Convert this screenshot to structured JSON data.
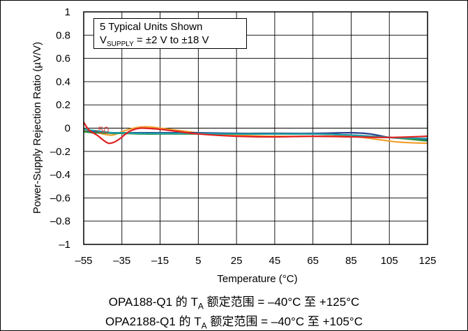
{
  "chart_data": {
    "type": "line",
    "xlabel": "Temperature (°C)",
    "ylabel": "Power-Supply Rejection Ratio (µV/V)",
    "xlim": [
      -55,
      125
    ],
    "ylim": [
      -1,
      1
    ],
    "x_ticks": [
      -55,
      -35,
      -15,
      5,
      25,
      45,
      65,
      85,
      105,
      125
    ],
    "y_ticks": [
      1,
      0.8,
      0.6,
      0.4,
      0.2,
      0,
      -0.2,
      -0.4,
      -0.6,
      -0.8,
      -1
    ],
    "x_tick_labels": [
      "–55",
      "–35",
      "–15",
      "5",
      "25",
      "45",
      "65",
      "85",
      "105",
      "125"
    ],
    "y_tick_labels": [
      "1",
      "0.8",
      "0.6",
      "0.4",
      "0.2",
      "0",
      "–0.2",
      "–0.4",
      "–0.6",
      "–0.8",
      "–1"
    ],
    "grid": true,
    "annotation": {
      "line1": "5 Typical Units Shown",
      "line2_main": "V",
      "line2_sub": "SUPPLY",
      "line2_rest": " = ±2 V to ±18 V"
    },
    "extra_text": "-50",
    "series": [
      {
        "color": "#f0a030",
        "x": [
          -55,
          -50,
          -45,
          -40,
          -35,
          -30,
          -25,
          -20,
          -15,
          -5,
          5,
          25,
          45,
          65,
          85,
          100,
          110,
          125
        ],
        "y": [
          -0.02,
          -0.03,
          -0.05,
          -0.06,
          -0.03,
          -0.005,
          0.01,
          0.01,
          0.0,
          -0.02,
          -0.04,
          -0.06,
          -0.07,
          -0.07,
          -0.07,
          -0.1,
          -0.12,
          -0.13
        ]
      },
      {
        "color": "#2a3d8f",
        "x": [
          -55,
          -50,
          -45,
          -40,
          -35,
          -25,
          -15,
          -5,
          5,
          25,
          45,
          65,
          85,
          95,
          105,
          115,
          125
        ],
        "y": [
          -0.03,
          -0.03,
          -0.04,
          -0.04,
          -0.04,
          -0.04,
          -0.04,
          -0.04,
          -0.04,
          -0.045,
          -0.045,
          -0.045,
          -0.04,
          -0.05,
          -0.08,
          -0.09,
          -0.1
        ]
      },
      {
        "color": "#2f8f3f",
        "x": [
          -55,
          -50,
          -45,
          -40,
          -35,
          -25,
          -15,
          -5,
          5,
          25,
          45,
          65,
          85,
          105,
          125
        ],
        "y": [
          -0.03,
          -0.04,
          -0.04,
          -0.045,
          -0.045,
          -0.05,
          -0.05,
          -0.05,
          -0.05,
          -0.05,
          -0.05,
          -0.05,
          -0.06,
          -0.08,
          -0.11
        ]
      },
      {
        "color": "#1e9fa8",
        "x": [
          -55,
          -50,
          -45,
          -40,
          -35,
          -25,
          -15,
          -5,
          5,
          25,
          45,
          65,
          85,
          105,
          125
        ],
        "y": [
          -0.01,
          -0.02,
          -0.03,
          -0.04,
          -0.04,
          -0.045,
          -0.045,
          -0.045,
          -0.045,
          -0.05,
          -0.05,
          -0.05,
          -0.06,
          -0.08,
          -0.09
        ]
      },
      {
        "color": "#e02020",
        "x": [
          -55,
          -52,
          -48,
          -45,
          -42,
          -39,
          -36,
          -33,
          -30,
          -25,
          -15,
          -5,
          5,
          25,
          45,
          65,
          85,
          105,
          125
        ],
        "y": [
          0.05,
          -0.02,
          -0.06,
          -0.1,
          -0.13,
          -0.12,
          -0.09,
          -0.05,
          -0.02,
          0.0,
          -0.01,
          -0.03,
          -0.05,
          -0.07,
          -0.075,
          -0.07,
          -0.075,
          -0.08,
          -0.07
        ]
      }
    ]
  },
  "captions": [
    {
      "pre": "OPA188-Q1 的 T",
      "sub": "A",
      "post": " 额定范围 = –40°C 至 +125°C"
    },
    {
      "pre": "OPA2188-Q1 的 T",
      "sub": "A",
      "post": " 额定范围 = –40°C 至 +105°C"
    }
  ]
}
